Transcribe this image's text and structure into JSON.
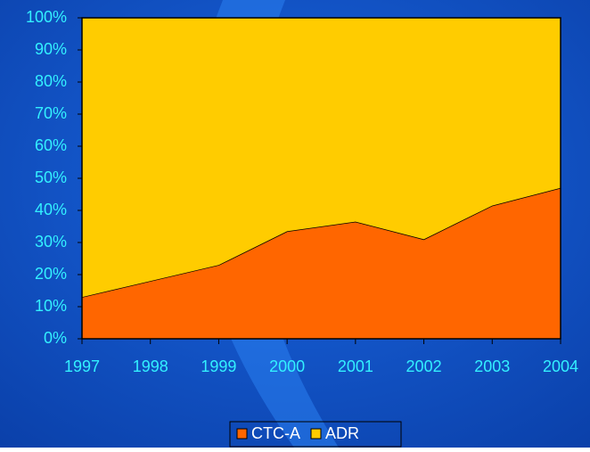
{
  "chart_data": {
    "type": "stacked_area",
    "categories": [
      "1997",
      "1998",
      "1999",
      "2000",
      "2001",
      "2002",
      "2003",
      "2004"
    ],
    "series": [
      {
        "name": "CTC-A",
        "color": "#ff6600",
        "values": [
          13,
          18,
          23,
          33.5,
          36.5,
          31,
          41.5,
          47
        ]
      },
      {
        "name": "ADR",
        "color": "#ffcc00",
        "values": [
          87,
          82,
          77,
          66.5,
          63.5,
          69,
          58.5,
          53
        ]
      }
    ],
    "ylim": [
      0,
      100
    ],
    "yticks": [
      {
        "value": 0,
        "label": "0%"
      },
      {
        "value": 10,
        "label": "10%"
      },
      {
        "value": 20,
        "label": "20%"
      },
      {
        "value": 30,
        "label": "30%"
      },
      {
        "value": 40,
        "label": "40%"
      },
      {
        "value": 50,
        "label": "50%"
      },
      {
        "value": 60,
        "label": "60%"
      },
      {
        "value": 70,
        "label": "70%"
      },
      {
        "value": 80,
        "label": "80%"
      },
      {
        "value": 90,
        "label": "90%"
      },
      {
        "value": 100,
        "label": "100%"
      }
    ],
    "legend": "bottom"
  }
}
